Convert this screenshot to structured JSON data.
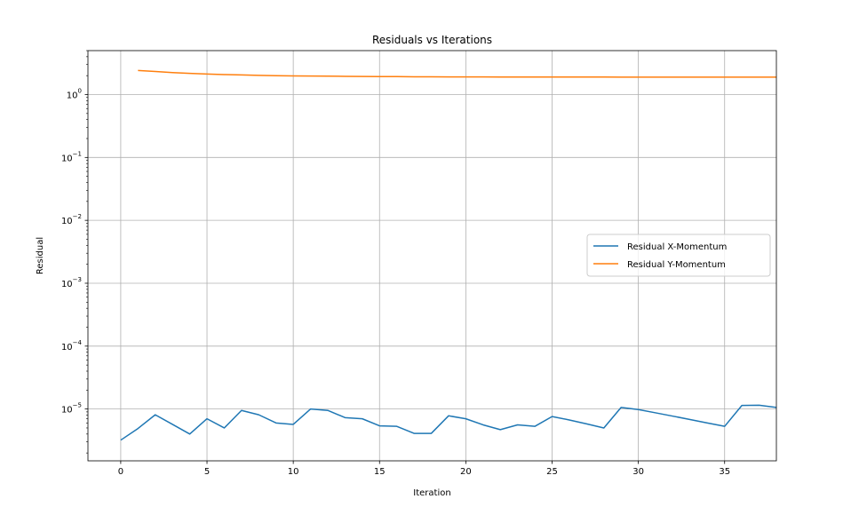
{
  "chart_data": {
    "type": "line",
    "title": "Residuals vs Iterations",
    "xlabel": "Iteration",
    "ylabel": "Residual",
    "xlim": [
      -1.9,
      38
    ],
    "ylim": [
      1.5e-06,
      5
    ],
    "yscale": "log",
    "grid": true,
    "legend_position": "center-right",
    "x_ticks": [
      0,
      5,
      10,
      15,
      20,
      25,
      30,
      35
    ],
    "y_ticks": [
      {
        "value": 1e-05,
        "base": "10",
        "exp": "−5"
      },
      {
        "value": 0.0001,
        "base": "10",
        "exp": "−4"
      },
      {
        "value": 0.001,
        "base": "10",
        "exp": "−3"
      },
      {
        "value": 0.01,
        "base": "10",
        "exp": "−2"
      },
      {
        "value": 0.1,
        "base": "10",
        "exp": "−1"
      },
      {
        "value": 1,
        "base": "10",
        "exp": "0"
      }
    ],
    "series": [
      {
        "name": "Residual X-Momentum",
        "color": "#1f77b4",
        "x": [
          0,
          1,
          2,
          3,
          4,
          5,
          6,
          7,
          8,
          9,
          10,
          11,
          12,
          13,
          14,
          15,
          16,
          17,
          18,
          19,
          20,
          21,
          22,
          23,
          24,
          25,
          26,
          27,
          28,
          29,
          30,
          31,
          32,
          33,
          34,
          35,
          36,
          37,
          38
        ],
        "values": [
          3.2e-06,
          4.9e-06,
          8.1e-06,
          5.7e-06,
          4e-06,
          7e-06,
          5e-06,
          9.5e-06,
          8.1e-06,
          6e-06,
          5.7e-06,
          1e-05,
          9.5e-06,
          7.3e-06,
          7e-06,
          5.4e-06,
          5.3e-06,
          4.1e-06,
          4.1e-06,
          7.8e-06,
          7e-06,
          5.6e-06,
          4.7e-06,
          5.6e-06,
          5.3e-06,
          7.6e-06,
          6.7e-06,
          5.8e-06,
          5e-06,
          1.06e-05,
          9.8e-06,
          8.7e-06,
          7.7e-06,
          6.8e-06,
          6e-06,
          5.3e-06,
          1.14e-05,
          1.15e-05,
          1.06e-05
        ]
      },
      {
        "name": "Residual Y-Momentum",
        "color": "#ff7f0e",
        "x": [
          1,
          2,
          3,
          4,
          5,
          6,
          7,
          8,
          9,
          10,
          11,
          12,
          13,
          14,
          15,
          16,
          17,
          18,
          19,
          20,
          21,
          22,
          23,
          24,
          25,
          26,
          27,
          28,
          29,
          30,
          31,
          32,
          33,
          34,
          35,
          36,
          37,
          38
        ],
        "values": [
          2.42,
          2.33,
          2.24,
          2.17,
          2.12,
          2.08,
          2.05,
          2.02,
          2.0,
          1.98,
          1.97,
          1.96,
          1.95,
          1.94,
          1.93,
          1.93,
          1.92,
          1.92,
          1.91,
          1.91,
          1.91,
          1.9,
          1.9,
          1.9,
          1.9,
          1.9,
          1.9,
          1.9,
          1.89,
          1.89,
          1.89,
          1.89,
          1.89,
          1.89,
          1.89,
          1.89,
          1.89,
          1.89
        ]
      }
    ]
  }
}
